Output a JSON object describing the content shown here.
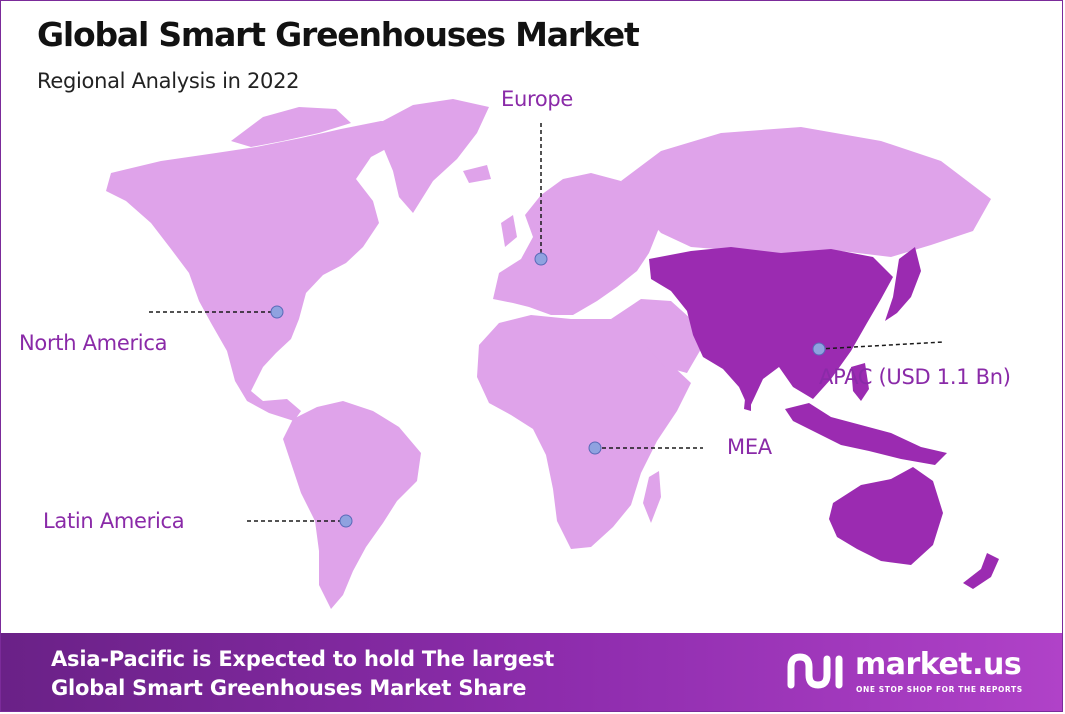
{
  "title": "Global Smart Greenhouses Market",
  "subtitle": "Regional Analysis in 2022",
  "regions": {
    "north_america": "North America",
    "europe": "Europe",
    "apac": "APAC (USD 1.1 Bn)",
    "mea": "MEA",
    "latin_america": "Latin America"
  },
  "highlighted_region": "APAC",
  "colors": {
    "land": "#dfa3ea",
    "highlight": "#9b2bb1",
    "label": "#8a2aa8",
    "marker": "#8fa2e0",
    "footer_start": "#6a2187",
    "footer_end": "#b042c8"
  },
  "footer": {
    "line1": "Asia-Pacific is Expected to hold The largest",
    "line2": "Global Smart Greenhouses Market  Share"
  },
  "brand": {
    "name": "market.us",
    "tagline": "ONE STOP SHOP FOR THE REPORTS",
    "icon": "market-us-logo-icon"
  }
}
